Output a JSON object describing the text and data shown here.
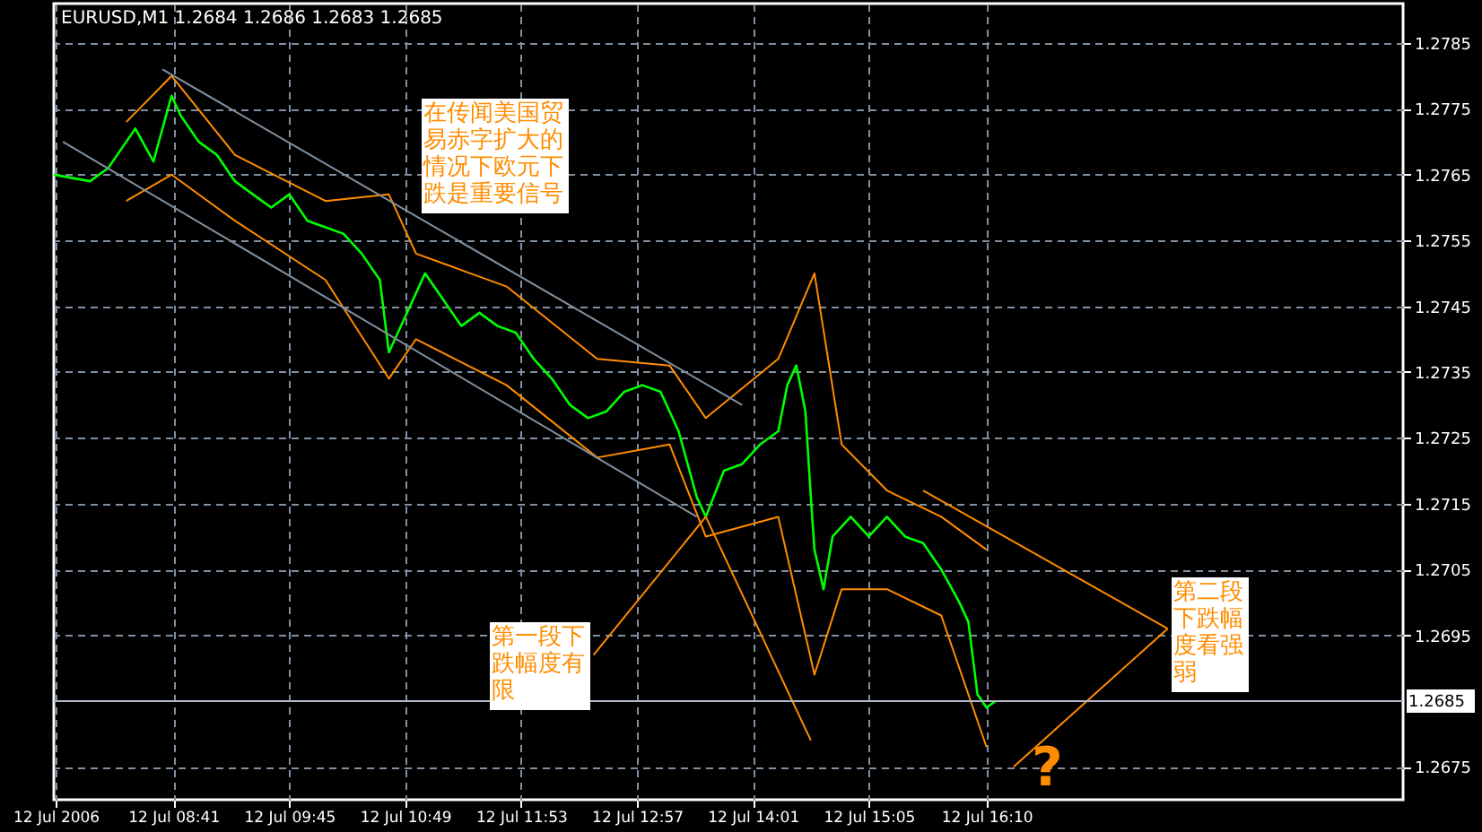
{
  "chart_data": {
    "type": "line",
    "title": "EURUSD,M1  1.2684 1.2686 1.2683 1.2685",
    "xlim": [
      "2006-07-12T07:35",
      "2006-07-12T20:00"
    ],
    "ylim": [
      1.267,
      1.2791
    ],
    "xticks": [
      {
        "value": "2006-07-12T07:36",
        "label": "12 Jul 2006"
      },
      {
        "value": "2006-07-12T08:41",
        "label": "12 Jul 08:41"
      },
      {
        "value": "2006-07-12T09:45",
        "label": "12 Jul 09:45"
      },
      {
        "value": "2006-07-12T10:49",
        "label": "12 Jul 10:49"
      },
      {
        "value": "2006-07-12T11:53",
        "label": "12 Jul 11:53"
      },
      {
        "value": "2006-07-12T12:57",
        "label": "12 Jul 12:57"
      },
      {
        "value": "2006-07-12T14:01",
        "label": "12 Jul 14:01"
      },
      {
        "value": "2006-07-12T15:05",
        "label": "12 Jul 15:05"
      },
      {
        "value": "2006-07-12T16:10",
        "label": "12 Jul 16:10"
      }
    ],
    "yticks": [
      1.2785,
      1.2775,
      1.2765,
      1.2755,
      1.2745,
      1.2735,
      1.2725,
      1.2715,
      1.2705,
      1.2695,
      1.2675
    ],
    "grid": true,
    "line_style": "solid",
    "marker": "none",
    "ref_lines": [
      {
        "axis": "y",
        "value": 1.2685,
        "label": "1.2685",
        "color": "#b0b8c8"
      }
    ],
    "series": [
      {
        "type": "line",
        "color": "#00ff00",
        "x": [
          "2006-07-12T07:35",
          "2006-07-12T07:55",
          "2006-07-12T08:05",
          "2006-07-12T08:15",
          "2006-07-12T08:20",
          "2006-07-12T08:30",
          "2006-07-12T08:40",
          "2006-07-12T08:45",
          "2006-07-12T08:55",
          "2006-07-12T09:05",
          "2006-07-12T09:15",
          "2006-07-12T09:25",
          "2006-07-12T09:35",
          "2006-07-12T09:45",
          "2006-07-12T09:55",
          "2006-07-12T10:05",
          "2006-07-12T10:15",
          "2006-07-12T10:25",
          "2006-07-12T10:35",
          "2006-07-12T10:40",
          "2006-07-12T10:50",
          "2006-07-12T11:00",
          "2006-07-12T11:10",
          "2006-07-12T11:20",
          "2006-07-12T11:30",
          "2006-07-12T11:40",
          "2006-07-12T11:50",
          "2006-07-12T12:00",
          "2006-07-12T12:10",
          "2006-07-12T12:20",
          "2006-07-12T12:30",
          "2006-07-12T12:40",
          "2006-07-12T12:50",
          "2006-07-12T13:00",
          "2006-07-12T13:10",
          "2006-07-12T13:20",
          "2006-07-12T13:30",
          "2006-07-12T13:35",
          "2006-07-12T13:45",
          "2006-07-12T13:55",
          "2006-07-12T14:05",
          "2006-07-12T14:15",
          "2006-07-12T14:20",
          "2006-07-12T14:25",
          "2006-07-12T14:30",
          "2006-07-12T14:33",
          "2006-07-12T14:35",
          "2006-07-12T14:40",
          "2006-07-12T14:45",
          "2006-07-12T14:55",
          "2006-07-12T15:05",
          "2006-07-12T15:15",
          "2006-07-12T15:25",
          "2006-07-12T15:35",
          "2006-07-12T15:45",
          "2006-07-12T15:55",
          "2006-07-12T16:00",
          "2006-07-12T16:05",
          "2006-07-12T16:10",
          "2006-07-12T16:15"
        ],
        "values": [
          1.2765,
          1.2764,
          1.2766,
          1.277,
          1.2772,
          1.2767,
          1.2777,
          1.2774,
          1.277,
          1.2768,
          1.2764,
          1.2762,
          1.276,
          1.2762,
          1.2758,
          1.2757,
          1.2756,
          1.2753,
          1.2749,
          1.2738,
          1.2744,
          1.275,
          1.2746,
          1.2742,
          1.2744,
          1.2742,
          1.2741,
          1.2737,
          1.2734,
          1.273,
          1.2728,
          1.2729,
          1.2732,
          1.2733,
          1.2732,
          1.2726,
          1.2716,
          1.2713,
          1.272,
          1.2721,
          1.2724,
          1.2726,
          1.2733,
          1.2736,
          1.2729,
          1.2716,
          1.2708,
          1.2702,
          1.271,
          1.2713,
          1.271,
          1.2713,
          1.271,
          1.2709,
          1.2705,
          1.27,
          1.2697,
          1.2686,
          1.2684,
          1.2685
        ]
      },
      {
        "type": "line",
        "color": "#ff8c00",
        "x": [
          "2006-07-12T08:15",
          "2006-07-12T08:40",
          "2006-07-12T09:15",
          "2006-07-12T10:05",
          "2006-07-12T10:40",
          "2006-07-12T10:55",
          "2006-07-12T11:45",
          "2006-07-12T12:35",
          "2006-07-12T13:15",
          "2006-07-12T13:35",
          "2006-07-12T14:15",
          "2006-07-12T14:35",
          "2006-07-12T14:50",
          "2006-07-12T15:15",
          "2006-07-12T15:45",
          "2006-07-12T16:10"
        ],
        "values": [
          1.2773,
          1.278,
          1.2768,
          1.2761,
          1.2762,
          1.2753,
          1.2748,
          1.2737,
          1.2736,
          1.2728,
          1.2737,
          1.275,
          1.2724,
          1.2717,
          1.2713,
          1.2708
        ]
      },
      {
        "type": "line",
        "color": "#ff8c00",
        "x": [
          "2006-07-12T08:15",
          "2006-07-12T08:40",
          "2006-07-12T09:15",
          "2006-07-12T10:05",
          "2006-07-12T10:40",
          "2006-07-12T10:55",
          "2006-07-12T11:45",
          "2006-07-12T12:35",
          "2006-07-12T13:15",
          "2006-07-12T13:35",
          "2006-07-12T14:15",
          "2006-07-12T14:35",
          "2006-07-12T14:50",
          "2006-07-12T15:15",
          "2006-07-12T15:45",
          "2006-07-12T16:10"
        ],
        "values": [
          1.2761,
          1.2765,
          1.2758,
          1.2749,
          1.2734,
          1.274,
          1.2733,
          1.2722,
          1.2724,
          1.271,
          1.2713,
          1.2689,
          1.2702,
          1.2702,
          1.2698,
          1.2678
        ]
      },
      {
        "type": "line",
        "color": "#8090a0",
        "x": [
          "2006-07-12T08:35",
          "2006-07-12T13:55"
        ],
        "values": [
          1.2781,
          1.273
        ]
      },
      {
        "type": "line",
        "color": "#8090a0",
        "x": [
          "2006-07-12T07:40",
          "2006-07-12T13:30"
        ],
        "values": [
          1.277,
          1.2713
        ]
      },
      {
        "type": "line",
        "color": "#ff8c00",
        "x": [
          "2006-07-12T13:35",
          "2006-07-12T14:33"
        ],
        "values": [
          1.2713,
          1.2679
        ]
      },
      {
        "type": "line",
        "color": "#ff8c00",
        "x": [
          "2006-07-12T13:35",
          "2006-07-12T12:33"
        ],
        "values": [
          1.2713,
          1.2692
        ]
      },
      {
        "type": "line",
        "color": "#ff8c00",
        "x": [
          "2006-07-12T15:35",
          "2006-07-12T17:50"
        ],
        "values": [
          1.2717,
          1.2696
        ]
      },
      {
        "type": "line",
        "color": "#ff8c00",
        "x": [
          "2006-07-12T16:25",
          "2006-07-12T17:50"
        ],
        "values": [
          1.2675,
          1.2696
        ]
      }
    ],
    "annotations": [
      "在传闻美国贸易赤字扩大的情况下欧元下跌是重要信号",
      "第一段下跌幅度有限",
      "第二段下跌幅度看强弱",
      "?"
    ]
  }
}
